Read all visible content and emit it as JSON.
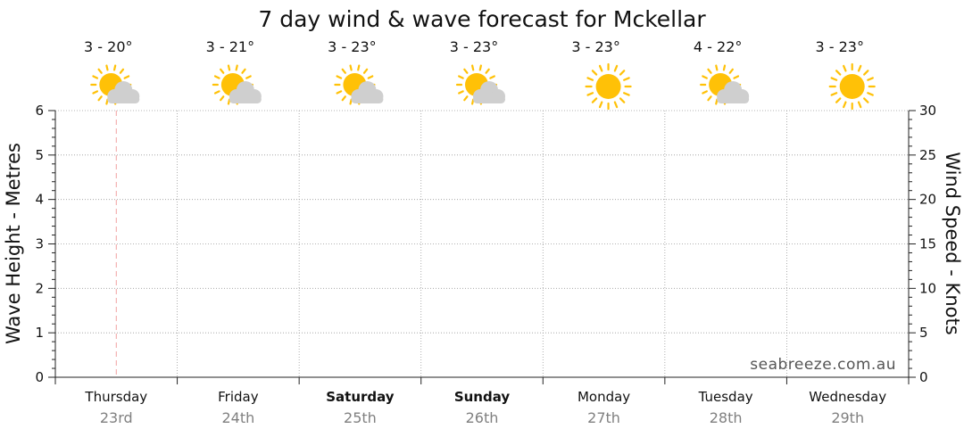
{
  "chart_data": {
    "type": "line",
    "title": "7 day wind & wave forecast for Mckellar",
    "ylabel_left": "Wave Height - Metres",
    "ylabel_right": "Wind Speed - Knots",
    "ylim_left": [
      0,
      6
    ],
    "ylim_right": [
      0,
      30
    ],
    "yticks_left": [
      "0",
      "1",
      "2",
      "3",
      "4",
      "5",
      "6"
    ],
    "yticks_right": [
      "0",
      "5",
      "10",
      "15",
      "20",
      "25",
      "30"
    ],
    "grid": true,
    "watermark": "seabreeze.com.au",
    "days": [
      {
        "day": "Thursday",
        "date": "23rd",
        "temp": "3 - 20°",
        "icon": "partly-cloudy-icon",
        "bold": false
      },
      {
        "day": "Friday",
        "date": "24th",
        "temp": "3 - 21°",
        "icon": "partly-cloudy-icon",
        "bold": false
      },
      {
        "day": "Saturday",
        "date": "25th",
        "temp": "3 - 23°",
        "icon": "partly-cloudy-icon",
        "bold": true
      },
      {
        "day": "Sunday",
        "date": "26th",
        "temp": "3 - 23°",
        "icon": "partly-cloudy-icon",
        "bold": true
      },
      {
        "day": "Monday",
        "date": "27th",
        "temp": "3 - 23°",
        "icon": "sunny-icon",
        "bold": false
      },
      {
        "day": "Tuesday",
        "date": "28th",
        "temp": "4 - 22°",
        "icon": "partly-cloudy-icon",
        "bold": false
      },
      {
        "day": "Wednesday",
        "date": "29th",
        "temp": "3 - 23°",
        "icon": "sunny-icon",
        "bold": false
      }
    ],
    "series": [],
    "current_time_marker_day": 0,
    "colors": {
      "sun": "#FFC107",
      "sun_ray": "#FFC107",
      "cloud": "#CFCFCF",
      "grid": "#9a9a9a",
      "now_marker": "#F2A0A0"
    }
  }
}
